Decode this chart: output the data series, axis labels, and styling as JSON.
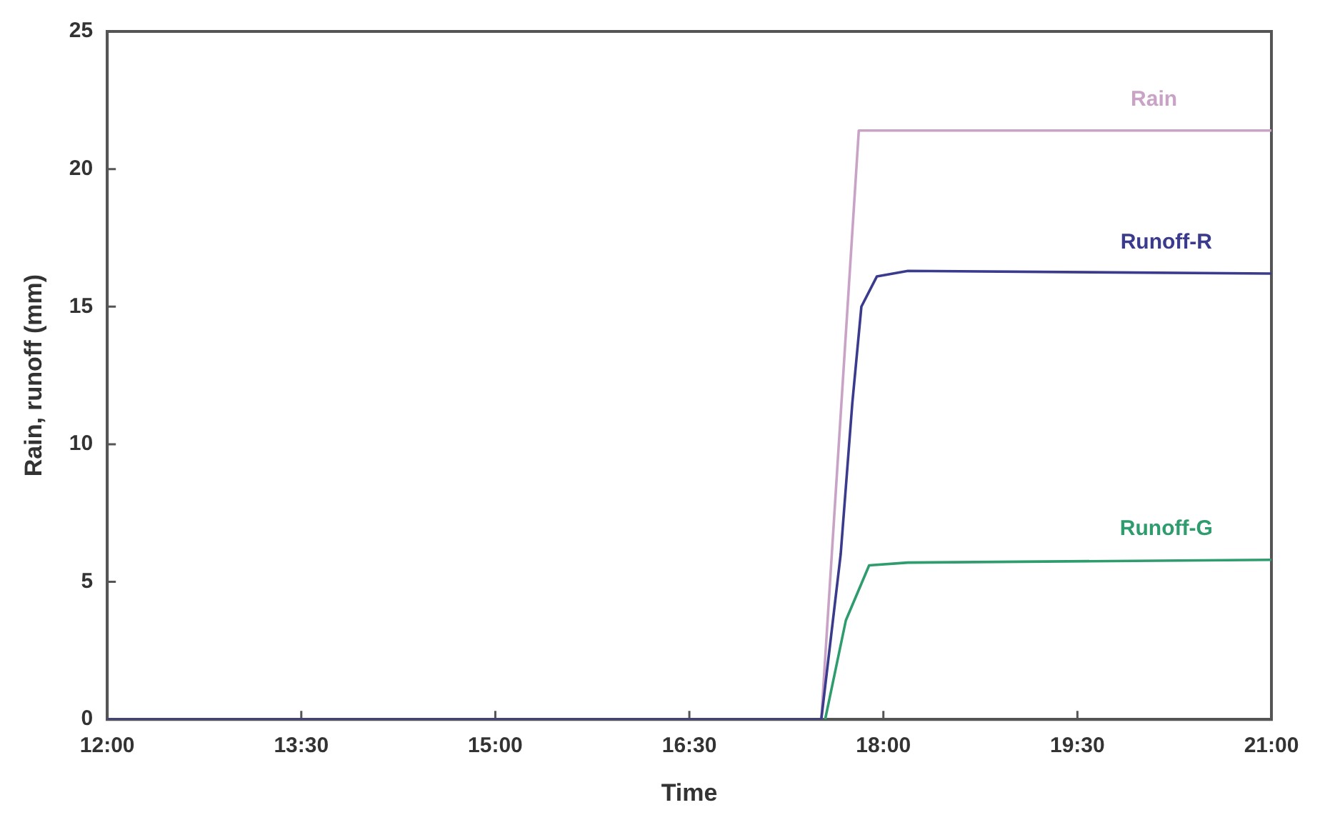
{
  "chart_data": {
    "type": "line",
    "xlabel": "Time",
    "ylabel": "Rain, runoff (mm)",
    "xlim": [
      12,
      21
    ],
    "xticks": [
      {
        "value": 12,
        "label": "12:00"
      },
      {
        "value": 13.5,
        "label": "13:30"
      },
      {
        "value": 15,
        "label": "15:00"
      },
      {
        "value": 16.5,
        "label": "16:30"
      },
      {
        "value": 18,
        "label": "18:00"
      },
      {
        "value": 19.5,
        "label": "19:30"
      },
      {
        "value": 21,
        "label": "21:00"
      }
    ],
    "ylim": [
      0,
      25
    ],
    "yticks": [
      0,
      5,
      10,
      15,
      20,
      25
    ],
    "grid": false,
    "legend": false,
    "marker": "none",
    "line_style": "solid",
    "series": [
      {
        "name": "Rain",
        "color": "#c9a3c6",
        "x": [
          17.52,
          17.81,
          21
        ],
        "values": [
          0,
          21.4,
          21.4
        ]
      },
      {
        "name": "Runoff-R",
        "color": "#3b3b8e",
        "x": [
          12,
          17.52,
          17.67,
          17.76,
          17.83,
          17.95,
          18.19,
          21
        ],
        "values": [
          0,
          0,
          6.0,
          11.5,
          15.0,
          16.1,
          16.3,
          16.2
        ]
      },
      {
        "name": "Runoff-G",
        "color": "#2e9c6c",
        "x": [
          17.55,
          17.71,
          17.89,
          18.19,
          21
        ],
        "values": [
          0,
          3.6,
          5.6,
          5.7,
          5.8
        ]
      }
    ]
  }
}
